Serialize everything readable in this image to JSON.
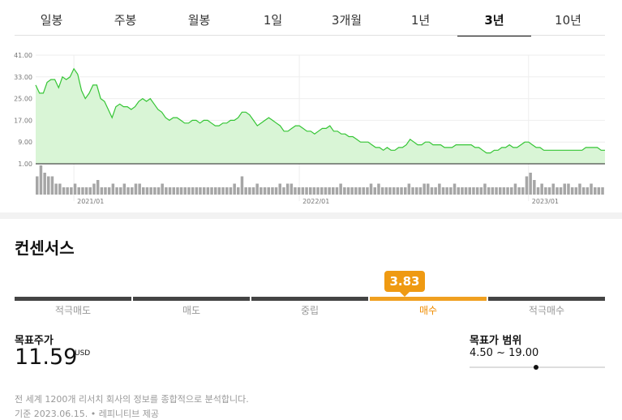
{
  "tabs": [
    {
      "label": "일봉",
      "active": false
    },
    {
      "label": "주봉",
      "active": false
    },
    {
      "label": "월봉",
      "active": false
    },
    {
      "label": "1일",
      "active": false
    },
    {
      "label": "3개월",
      "active": false
    },
    {
      "label": "1년",
      "active": false
    },
    {
      "label": "3년",
      "active": true
    },
    {
      "label": "10년",
      "active": false
    }
  ],
  "chart_data": {
    "type": "area",
    "y_ticks": [
      "41.00",
      "33.00",
      "25.00",
      "17.00",
      "9.00",
      "1.00"
    ],
    "ylim": [
      1,
      41
    ],
    "x_tick_labels": [
      "2021/01",
      "2022/01",
      "2023/01"
    ],
    "price": [
      30,
      27,
      27,
      31,
      32,
      32,
      29,
      33,
      32,
      33,
      36,
      34,
      28,
      25,
      27,
      30,
      30,
      25,
      24,
      21,
      18,
      22,
      23,
      22,
      22,
      21,
      22,
      24,
      25,
      24,
      25,
      23,
      21,
      20,
      18,
      17,
      18,
      18,
      17,
      16,
      16,
      17,
      17,
      16,
      17,
      17,
      16,
      15,
      15,
      16,
      16,
      17,
      17,
      18,
      20,
      20,
      19,
      17,
      15,
      16,
      17,
      18,
      17,
      16,
      15,
      13,
      13,
      14,
      15,
      15,
      14,
      13,
      13,
      12,
      13,
      14,
      14,
      15,
      13,
      13,
      12,
      12,
      11,
      11,
      10,
      9,
      9,
      9,
      8,
      7,
      7,
      6,
      7,
      6,
      6,
      7,
      7,
      8,
      10,
      9,
      8,
      8,
      9,
      9,
      8,
      8,
      8,
      7,
      7,
      7,
      8,
      8,
      8,
      8,
      8,
      7,
      7,
      6,
      5,
      5,
      6,
      6,
      7,
      7,
      8,
      7,
      7,
      8,
      9,
      9,
      8,
      7,
      7,
      6,
      6,
      6,
      6,
      6,
      6,
      6,
      6,
      6,
      6,
      6,
      7,
      7,
      7,
      7,
      6,
      6
    ],
    "volume": [
      5,
      8,
      6,
      5,
      5,
      3,
      3,
      2,
      2,
      2,
      3,
      2,
      2,
      2,
      2,
      3,
      4,
      2,
      2,
      2,
      3,
      2,
      2,
      3,
      2,
      2,
      3,
      3,
      2,
      2,
      2,
      2,
      2,
      3,
      2,
      2,
      2,
      2,
      2,
      2,
      2,
      2,
      2,
      2,
      2,
      2,
      2,
      2,
      2,
      2,
      2,
      2,
      3,
      2,
      5,
      2,
      2,
      2,
      3,
      2,
      2,
      2,
      2,
      2,
      3,
      2,
      3,
      3,
      2,
      2,
      2,
      2,
      2,
      2,
      2,
      2,
      2,
      2,
      2,
      2,
      3,
      2,
      2,
      2,
      2,
      2,
      2,
      2,
      3,
      2,
      3,
      2,
      2,
      2,
      2,
      2,
      2,
      2,
      3,
      2,
      2,
      2,
      3,
      3,
      2,
      2,
      3,
      2,
      2,
      2,
      3,
      2,
      2,
      2,
      2,
      2,
      2,
      2,
      3,
      2,
      2,
      2,
      2,
      2,
      2,
      2,
      3,
      2,
      2,
      5,
      6,
      4,
      2,
      3,
      2,
      2,
      3,
      2,
      2,
      3,
      3,
      2,
      2,
      3,
      2,
      2,
      3,
      2,
      2,
      2
    ]
  },
  "consensus": {
    "title": "컨센서스",
    "rating": "3.83",
    "scale": [
      "적극매도",
      "매도",
      "중립",
      "매수",
      "적극매수"
    ],
    "active_index": 3,
    "target_label": "목표주가",
    "target_value": "11.59",
    "target_unit": "USD",
    "range_label": "목표가 범위",
    "range_value": "4.50 ~ 19.00",
    "range_min": 4.5,
    "range_max": 19.0,
    "note1": "전 세계 1200개 리서치 회사의 정보를 종합적으로 분석합니다.",
    "note2": "기준 2023.06.15. • 레피니티브 제공"
  },
  "colors": {
    "line": "#35c535",
    "fill": "#d9f5d6",
    "accent": "#ef9a12"
  }
}
